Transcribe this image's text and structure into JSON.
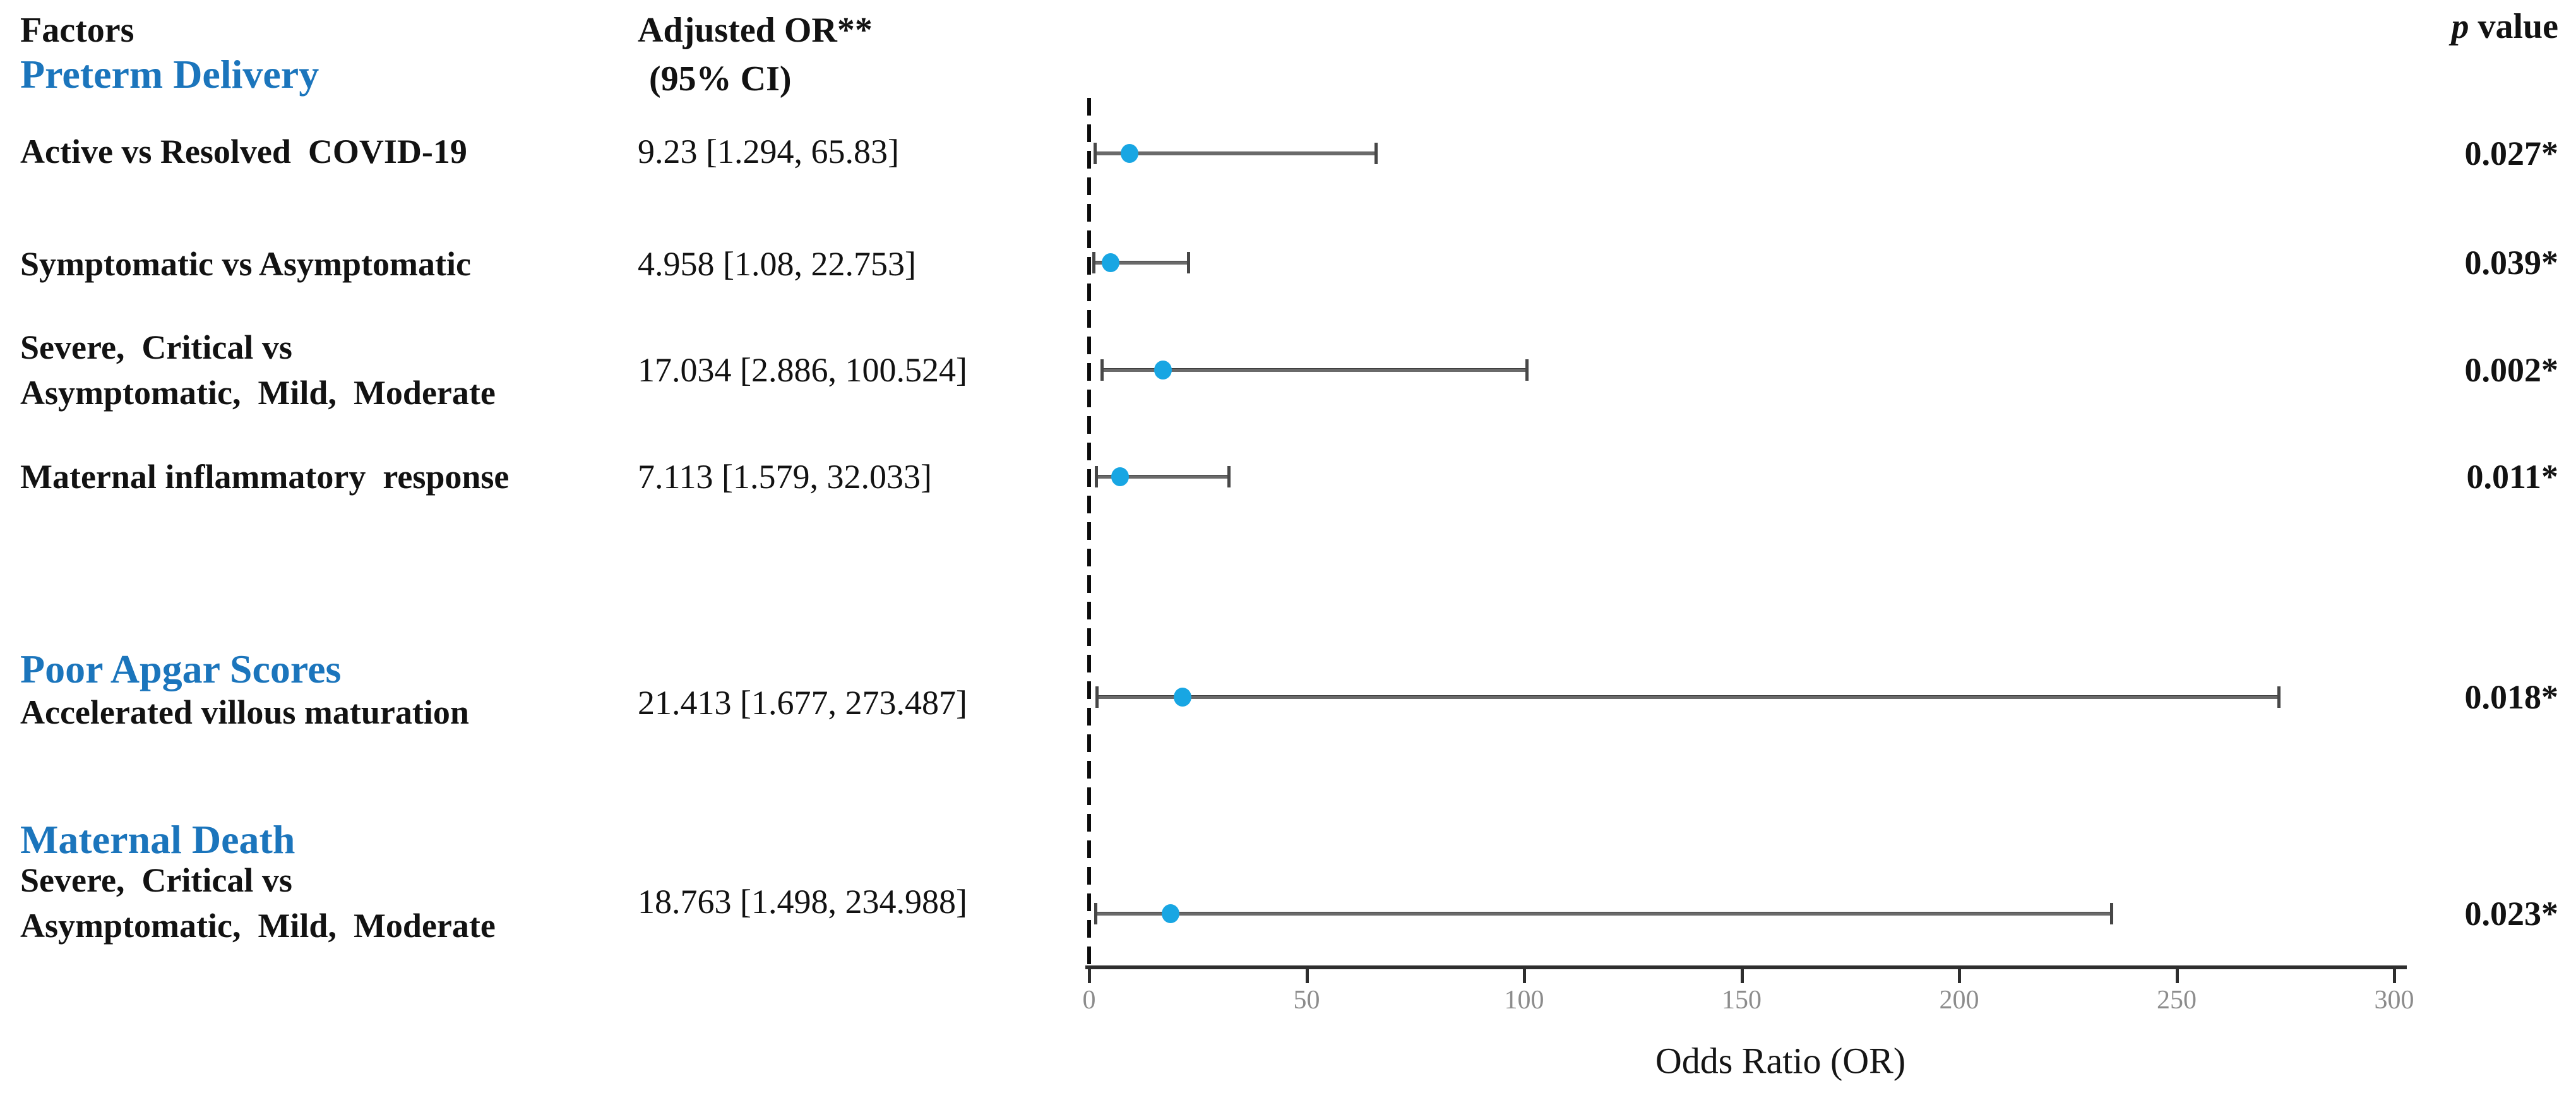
{
  "header": {
    "factors_label": "Factors",
    "adjusted_or_label": "Adjusted OR**",
    "ci_label": " (95% CI)",
    "p_label_italic": "p",
    "p_label_rest": " value"
  },
  "colors": {
    "group_header_blue": "#1B75BC",
    "marker_blue": "#18A6E3",
    "error_bar_gray": "#6a6a6a",
    "axis_dark": "#2e2e2e",
    "tick_label_gray": "#8c8c8c"
  },
  "chart_data": {
    "type": "scatter",
    "subtype": "forest-plot",
    "title": "",
    "xlabel": "Odds Ratio (OR)",
    "xlim": [
      0,
      300
    ],
    "x_ticks": [
      0,
      50,
      100,
      150,
      200,
      250,
      300
    ],
    "reference_line_x": 1,
    "grid": false,
    "legend_position": "none",
    "groups": [
      {
        "title": "Preterm Delivery",
        "rows": [
          {
            "label_lines": [
              "Active vs Resolved  COVID-19"
            ],
            "or": 9.23,
            "ci_low": 1.294,
            "ci_high": 65.83,
            "or_text": "9.23 [1.294, 65.83]",
            "p_value": "0.027*"
          },
          {
            "label_lines": [
              "Symptomatic vs Asymptomatic"
            ],
            "or": 4.958,
            "ci_low": 1.08,
            "ci_high": 22.753,
            "or_text": "4.958 [1.08, 22.753]",
            "p_value": "0.039*"
          },
          {
            "label_lines": [
              "Severe,  Critical vs",
              "Asymptomatic,  Mild,  Moderate"
            ],
            "or": 17.034,
            "ci_low": 2.886,
            "ci_high": 100.524,
            "or_text": "17.034 [2.886, 100.524]",
            "p_value": "0.002*"
          },
          {
            "label_lines": [
              "Maternal inflammatory  response"
            ],
            "or": 7.113,
            "ci_low": 1.579,
            "ci_high": 32.033,
            "or_text": "7.113 [1.579, 32.033]",
            "p_value": "0.011*"
          }
        ]
      },
      {
        "title": "Poor Apgar Scores",
        "rows": [
          {
            "label_lines": [
              "Accelerated villous maturation"
            ],
            "or": 21.413,
            "ci_low": 1.677,
            "ci_high": 273.487,
            "or_text": "21.413 [1.677, 273.487]",
            "p_value": "0.018*"
          }
        ]
      },
      {
        "title": "Maternal Death",
        "rows": [
          {
            "label_lines": [
              "Severe,  Critical vs",
              "Asymptomatic,  Mild,  Moderate"
            ],
            "or": 18.763,
            "ci_low": 1.498,
            "ci_high": 234.988,
            "or_text": "18.763 [1.498, 234.988]",
            "p_value": "0.023*"
          }
        ]
      }
    ]
  }
}
